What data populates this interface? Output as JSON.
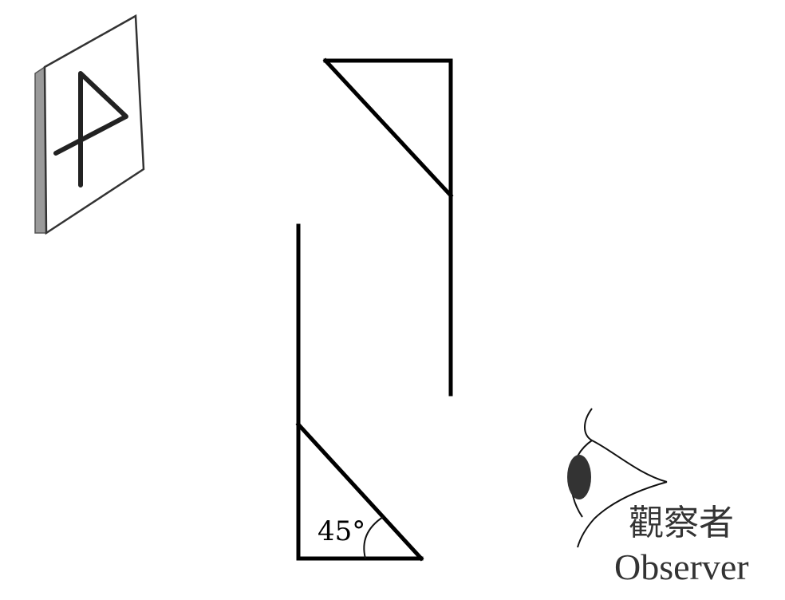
{
  "periscope": {
    "angle_label": "45°"
  },
  "observer": {
    "label_zh": "觀察者",
    "label_en": "Observer"
  },
  "icons": {
    "object_card": "letter-card-icon",
    "eye": "eye-icon"
  }
}
